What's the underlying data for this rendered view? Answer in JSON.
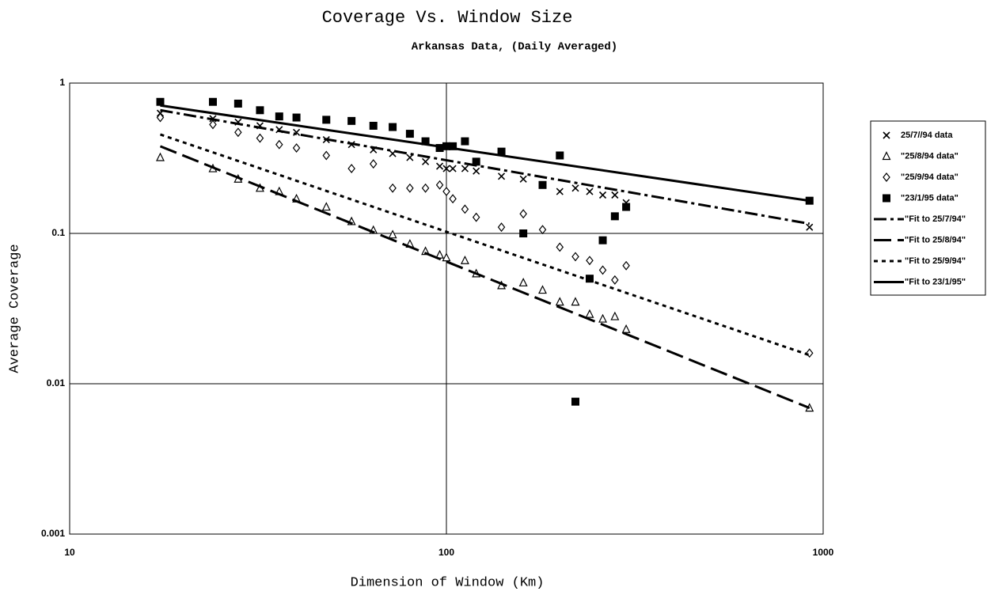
{
  "chart_data": {
    "type": "scatter",
    "title": "Coverage Vs. Window Size",
    "subtitle": "Arkansas Data, (Daily Averaged)",
    "x_label": "Dimension of Window (Km)",
    "y_label": "Average Coverage",
    "xscale": "log",
    "yscale": "log",
    "xlim": [
      10,
      1000
    ],
    "ylim": [
      0.001,
      1
    ],
    "xticks": [
      10,
      100,
      1000
    ],
    "yticks": [
      0.001,
      0.01,
      0.1,
      1
    ],
    "grid": true,
    "legend": "right",
    "series": [
      {
        "name": "25/7//94 data",
        "color": "#000000",
        "marker": "cross",
        "x": [
          17.4,
          24,
          28,
          32,
          36,
          40,
          48,
          56,
          64,
          72,
          80,
          88,
          96,
          100,
          104,
          112,
          120,
          140,
          160,
          200,
          220,
          240,
          260,
          280,
          300,
          920
        ],
        "values": [
          0.63,
          0.58,
          0.55,
          0.52,
          0.49,
          0.47,
          0.42,
          0.39,
          0.36,
          0.34,
          0.32,
          0.3,
          0.28,
          0.27,
          0.27,
          0.27,
          0.26,
          0.24,
          0.23,
          0.19,
          0.2,
          0.19,
          0.18,
          0.18,
          0.16,
          0.11
        ]
      },
      {
        "name": "\"25/8/94 data\"",
        "color": "#000000",
        "marker": "triangle",
        "x": [
          17.4,
          24,
          28,
          32,
          36,
          40,
          48,
          56,
          64,
          72,
          80,
          88,
          96,
          100,
          112,
          120,
          140,
          160,
          180,
          200,
          220,
          240,
          260,
          280,
          300,
          920
        ],
        "values": [
          0.32,
          0.27,
          0.23,
          0.2,
          0.19,
          0.17,
          0.15,
          0.12,
          0.105,
          0.098,
          0.085,
          0.076,
          0.072,
          0.069,
          0.066,
          0.054,
          0.045,
          0.047,
          0.042,
          0.035,
          0.035,
          0.029,
          0.027,
          0.028,
          0.023,
          0.0069
        ]
      },
      {
        "name": "\"25/9/94 data\"",
        "color": "#000000",
        "marker": "diamond",
        "x": [
          17.4,
          24,
          28,
          32,
          36,
          40,
          48,
          56,
          64,
          72,
          80,
          88,
          96,
          100,
          104,
          112,
          120,
          140,
          160,
          180,
          200,
          220,
          240,
          260,
          280,
          300,
          920
        ],
        "values": [
          0.59,
          0.53,
          0.47,
          0.43,
          0.39,
          0.37,
          0.33,
          0.27,
          0.29,
          0.2,
          0.2,
          0.2,
          0.21,
          0.19,
          0.17,
          0.145,
          0.128,
          0.11,
          0.135,
          0.106,
          0.081,
          0.07,
          0.066,
          0.057,
          0.049,
          0.061,
          0.016
        ]
      },
      {
        "name": "\"23/1/95 data\"",
        "color": "#000000",
        "marker": "square",
        "x": [
          17.4,
          24,
          28,
          32,
          36,
          40,
          48,
          56,
          64,
          72,
          80,
          88,
          96,
          100,
          104,
          112,
          120,
          140,
          160,
          180,
          200,
          220,
          240,
          260,
          280,
          300,
          920
        ],
        "values": [
          0.75,
          0.75,
          0.73,
          0.66,
          0.6,
          0.59,
          0.57,
          0.56,
          0.52,
          0.51,
          0.46,
          0.41,
          0.37,
          0.38,
          0.38,
          0.41,
          0.3,
          0.35,
          0.1,
          0.21,
          0.33,
          0.0076,
          0.05,
          0.09,
          0.13,
          0.15,
          0.165
        ]
      },
      {
        "name": "\"Fit to 25/7/94\"",
        "color": "#000000",
        "dash": "16,5,4,5",
        "x": [
          17.4,
          920
        ],
        "values": [
          0.66,
          0.116
        ]
      },
      {
        "name": "\"Fit to 25/8/94\"",
        "color": "#000000",
        "dash": "22,8",
        "x": [
          17.4,
          920
        ],
        "values": [
          0.38,
          0.0069
        ]
      },
      {
        "name": "\"Fit to 25/9/94\"",
        "color": "#000000",
        "dash": "5,5",
        "x": [
          17.4,
          920
        ],
        "values": [
          0.455,
          0.0155
        ]
      },
      {
        "name": "\"Fit to 23/1/95\"",
        "color": "#000000",
        "dash": "none",
        "x": [
          17.4,
          920
        ],
        "values": [
          0.71,
          0.165
        ]
      }
    ]
  }
}
